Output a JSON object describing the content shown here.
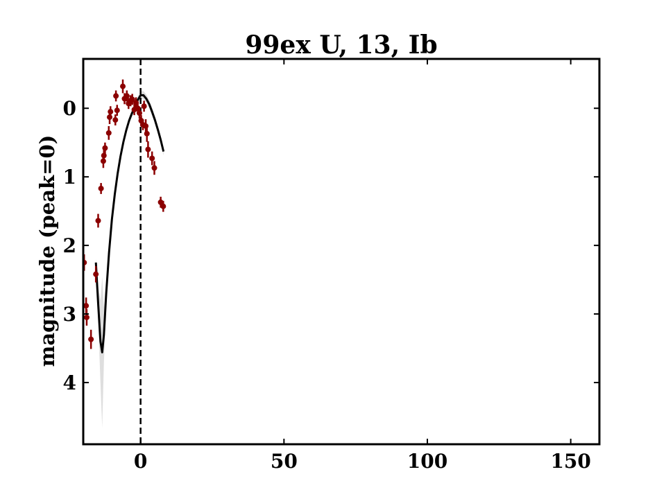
{
  "chart_data": {
    "type": "scatter",
    "title": "99ex U, 13, Ib",
    "xlabel": "",
    "ylabel": "magnitude (peak=0)",
    "xlim": [
      -20,
      160
    ],
    "ylim": [
      4.9,
      -0.72
    ],
    "y_inverted": true,
    "xticks": [
      0,
      50,
      100,
      150
    ],
    "yticks": [
      0,
      1,
      2,
      3,
      4
    ],
    "peak_line_x": 0,
    "observations": {
      "color": "#8b0000",
      "points": [
        {
          "x": -19.7,
          "y": 2.25,
          "err": 0.12
        },
        {
          "x": -19.0,
          "y": 2.88,
          "err": 0.12
        },
        {
          "x": -18.8,
          "y": 3.05,
          "err": 0.12
        },
        {
          "x": -17.3,
          "y": 3.37,
          "err": 0.14
        },
        {
          "x": -15.6,
          "y": 2.42,
          "err": 0.12
        },
        {
          "x": -14.8,
          "y": 1.64,
          "err": 0.1
        },
        {
          "x": -13.8,
          "y": 1.17,
          "err": 0.08
        },
        {
          "x": -13.0,
          "y": 0.77,
          "err": 0.1
        },
        {
          "x": -12.8,
          "y": 0.69,
          "err": 0.1
        },
        {
          "x": -12.4,
          "y": 0.58,
          "err": 0.08
        },
        {
          "x": -11.1,
          "y": 0.36,
          "err": 0.1
        },
        {
          "x": -10.8,
          "y": 0.13,
          "err": 0.1
        },
        {
          "x": -10.5,
          "y": 0.05,
          "err": 0.08
        },
        {
          "x": -8.8,
          "y": 0.17,
          "err": 0.08
        },
        {
          "x": -8.6,
          "y": -0.18,
          "err": 0.08
        },
        {
          "x": -8.2,
          "y": 0.03,
          "err": 0.08
        },
        {
          "x": -6.2,
          "y": -0.32,
          "err": 0.1
        },
        {
          "x": -5.6,
          "y": -0.14,
          "err": 0.08
        },
        {
          "x": -4.8,
          "y": -0.18,
          "err": 0.08
        },
        {
          "x": -4.2,
          "y": -0.07,
          "err": 0.08
        },
        {
          "x": -3.5,
          "y": -0.11,
          "err": 0.08
        },
        {
          "x": -2.9,
          "y": -0.13,
          "err": 0.08
        },
        {
          "x": -2.2,
          "y": 0.02,
          "err": 0.08
        },
        {
          "x": -1.6,
          "y": -0.08,
          "err": 0.08
        },
        {
          "x": -1.0,
          "y": 0.0,
          "err": 0.08
        },
        {
          "x": -0.4,
          "y": 0.07,
          "err": 0.08
        },
        {
          "x": 0.2,
          "y": 0.18,
          "err": 0.08
        },
        {
          "x": 0.8,
          "y": 0.24,
          "err": 0.08
        },
        {
          "x": 1.2,
          "y": -0.03,
          "err": 0.08
        },
        {
          "x": 1.8,
          "y": 0.26,
          "err": 0.1
        },
        {
          "x": 2.2,
          "y": 0.37,
          "err": 0.12
        },
        {
          "x": 2.6,
          "y": 0.6,
          "err": 0.12
        },
        {
          "x": 4.0,
          "y": 0.73,
          "err": 0.1
        },
        {
          "x": 4.8,
          "y": 0.87,
          "err": 0.1
        },
        {
          "x": 7.0,
          "y": 1.37,
          "err": 0.08
        },
        {
          "x": 7.9,
          "y": 1.43,
          "err": 0.08
        }
      ]
    },
    "fit": {
      "color": "#000000",
      "band_color": "#d3d3d3",
      "points": [
        {
          "x": -15.6,
          "y": 2.25,
          "sigma": 0.05
        },
        {
          "x": -14.8,
          "y": 2.85,
          "sigma": 0.25
        },
        {
          "x": -14.0,
          "y": 3.4,
          "sigma": 0.6
        },
        {
          "x": -13.4,
          "y": 3.56,
          "sigma": 1.1
        },
        {
          "x": -12.8,
          "y": 3.3,
          "sigma": 0.4
        },
        {
          "x": -12.0,
          "y": 2.7,
          "sigma": 0.18
        },
        {
          "x": -11.0,
          "y": 2.1,
          "sigma": 0.1
        },
        {
          "x": -10.0,
          "y": 1.62,
          "sigma": 0.08
        },
        {
          "x": -9.0,
          "y": 1.25,
          "sigma": 0.07
        },
        {
          "x": -8.0,
          "y": 0.95,
          "sigma": 0.06
        },
        {
          "x": -7.0,
          "y": 0.7,
          "sigma": 0.05
        },
        {
          "x": -6.0,
          "y": 0.49,
          "sigma": 0.05
        },
        {
          "x": -5.0,
          "y": 0.32,
          "sigma": 0.05
        },
        {
          "x": -4.0,
          "y": 0.18,
          "sigma": 0.05
        },
        {
          "x": -3.0,
          "y": 0.07,
          "sigma": 0.05
        },
        {
          "x": -2.0,
          "y": -0.02,
          "sigma": 0.05
        },
        {
          "x": -1.0,
          "y": -0.12,
          "sigma": 0.05
        },
        {
          "x": 0.0,
          "y": -0.19,
          "sigma": 0.06
        },
        {
          "x": 1.0,
          "y": -0.19,
          "sigma": 0.06
        },
        {
          "x": 2.0,
          "y": -0.14,
          "sigma": 0.06
        },
        {
          "x": 3.0,
          "y": -0.06,
          "sigma": 0.06
        },
        {
          "x": 4.0,
          "y": 0.05,
          "sigma": 0.06
        },
        {
          "x": 5.0,
          "y": 0.17,
          "sigma": 0.06
        },
        {
          "x": 6.0,
          "y": 0.31,
          "sigma": 0.06
        },
        {
          "x": 7.0,
          "y": 0.46,
          "sigma": 0.06
        },
        {
          "x": 8.0,
          "y": 0.63,
          "sigma": 0.06
        }
      ]
    }
  }
}
